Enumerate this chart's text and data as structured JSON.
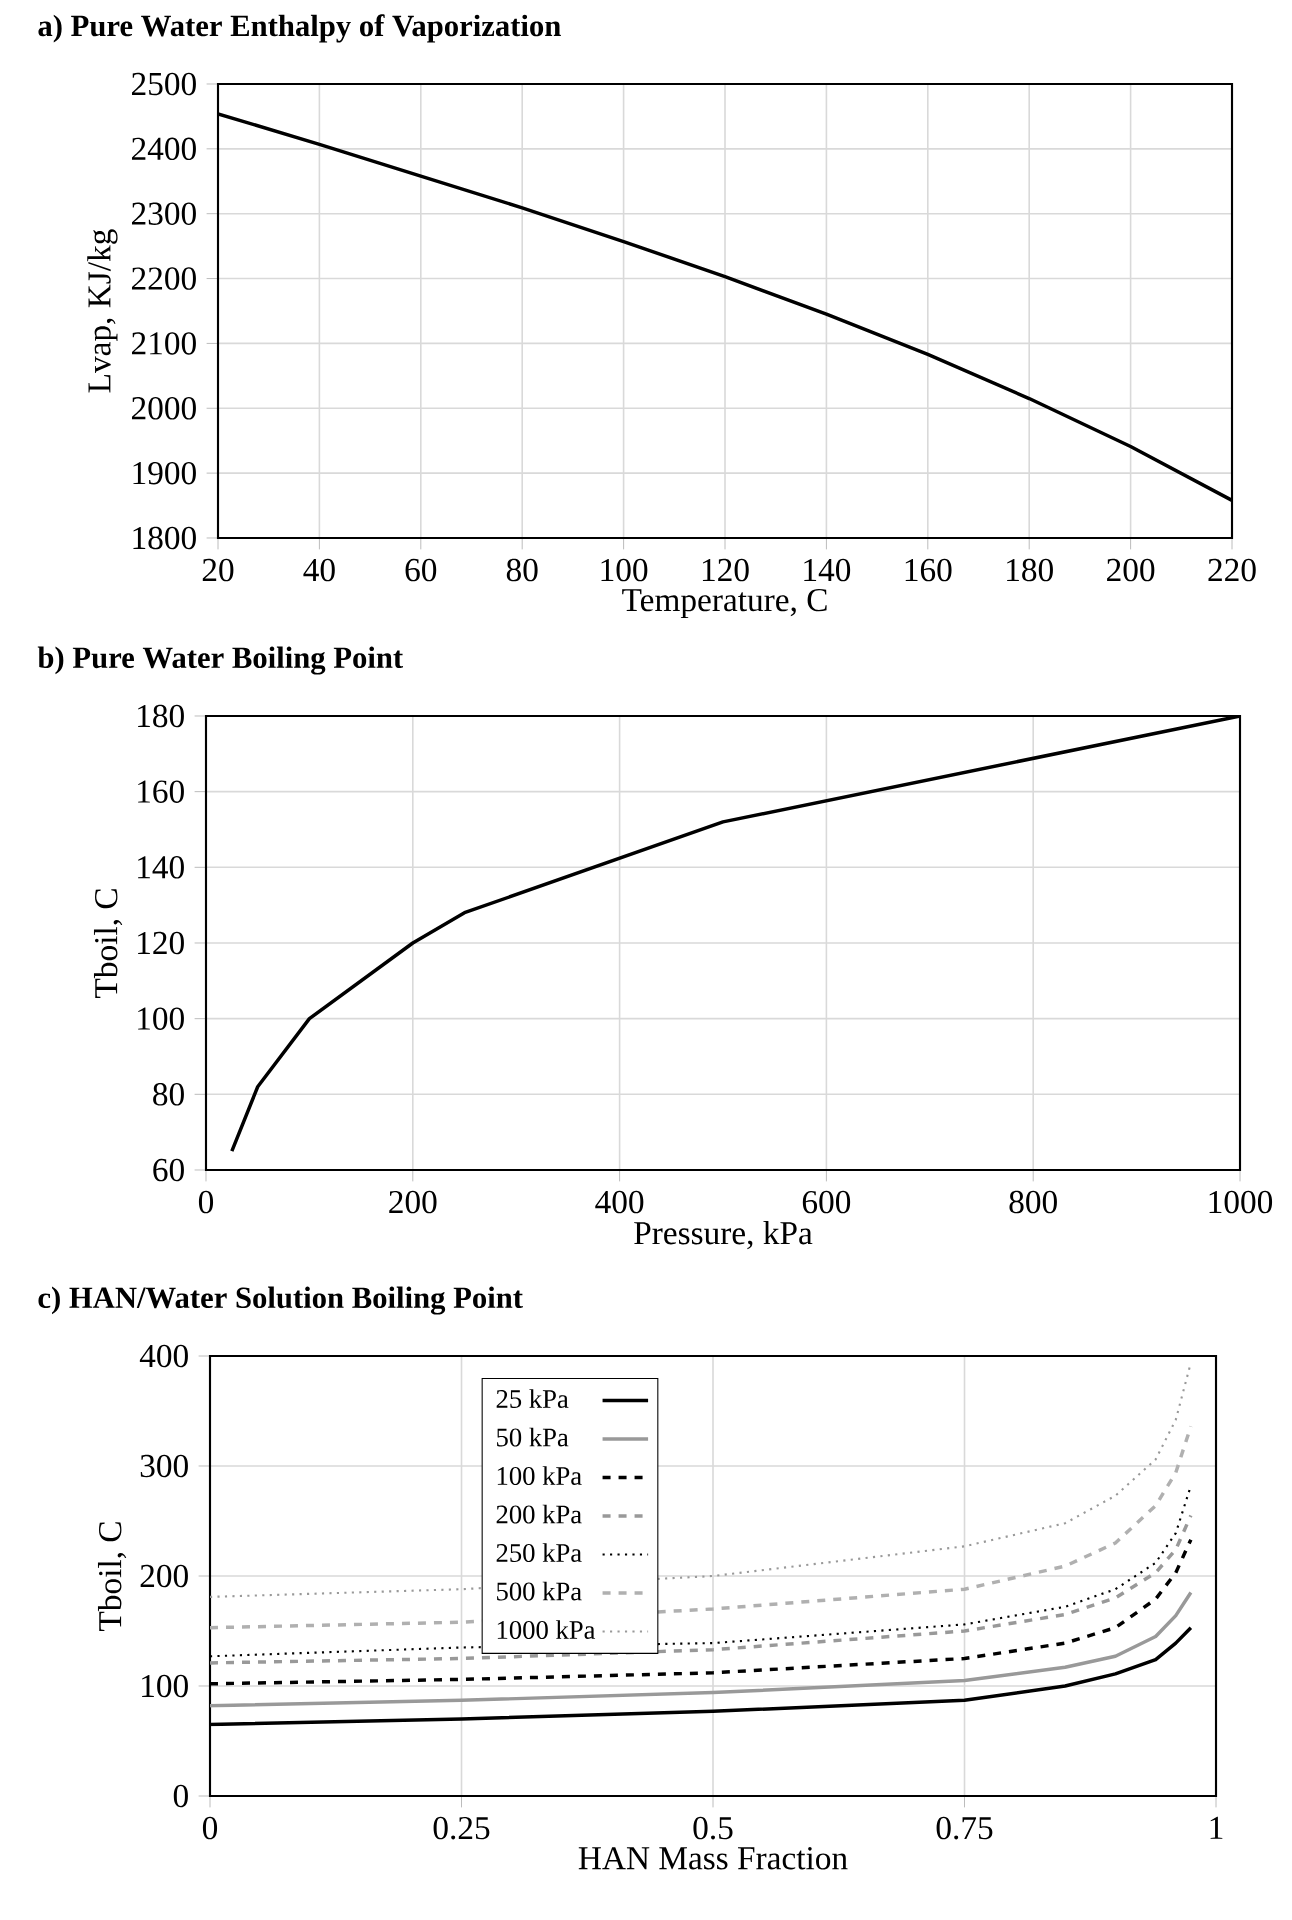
{
  "chart_data": [
    {
      "type": "line",
      "title": "a) Pure Water Enthalpy of Vaporization",
      "xlabel": "Temperature, C",
      "ylabel": "Lvap, KJ/kg",
      "xlim": [
        20,
        220
      ],
      "ylim": [
        1800,
        2500
      ],
      "xticks": [
        20,
        40,
        60,
        80,
        100,
        120,
        140,
        160,
        180,
        200,
        220
      ],
      "yticks": [
        1800,
        1900,
        2000,
        2100,
        2200,
        2300,
        2400,
        2500
      ],
      "grid": true,
      "color": "#000000",
      "x": [
        20,
        40,
        60,
        80,
        100,
        120,
        140,
        160,
        180,
        200,
        220
      ],
      "values": [
        2454,
        2407,
        2358,
        2309,
        2257,
        2203,
        2145,
        2083,
        2015,
        1941,
        1858
      ]
    },
    {
      "type": "line",
      "title": "b) Pure Water Boiling Point",
      "xlabel": "Pressure, kPa",
      "ylabel": "Tboil, C",
      "xlim": [
        0,
        1000
      ],
      "ylim": [
        60,
        180
      ],
      "xticks": [
        0,
        200,
        400,
        600,
        800,
        1000
      ],
      "yticks": [
        60,
        80,
        100,
        120,
        140,
        160,
        180
      ],
      "grid": true,
      "color": "#000000",
      "x": [
        25,
        50,
        100,
        200,
        250,
        500,
        1000
      ],
      "values": [
        65,
        82,
        100,
        120,
        128,
        152,
        180
      ]
    },
    {
      "type": "line",
      "title": "c) HAN/Water Solution Boiling Point",
      "xlabel": "HAN Mass Fraction",
      "ylabel": "Tboil, C",
      "xlim": [
        0,
        1
      ],
      "ylim": [
        0,
        400
      ],
      "xticks": [
        0,
        0.25,
        0.5,
        0.75,
        1
      ],
      "yticks": [
        0,
        100,
        200,
        300,
        400
      ],
      "grid": true,
      "legend": "top left",
      "x": [
        0,
        0.25,
        0.5,
        0.75,
        0.85,
        0.9,
        0.94,
        0.96,
        0.975
      ],
      "series": [
        {
          "name": "25 kPa",
          "color": "#000000",
          "line_style": "solid",
          "values": [
            65,
            70,
            77,
            87,
            100,
            111,
            124,
            139,
            153
          ]
        },
        {
          "name": "50 kPa",
          "color": "#999999",
          "line_style": "solid",
          "values": [
            82,
            87,
            94,
            105,
            117,
            127,
            145,
            164,
            185
          ]
        },
        {
          "name": "100 kPa",
          "color": "#000000",
          "line_style": "dashed",
          "values": [
            102,
            106,
            112,
            125,
            139,
            153,
            179,
            203,
            233
          ]
        },
        {
          "name": "200 kPa",
          "color": "#999999",
          "line_style": "dashed",
          "values": [
            121,
            125,
            133,
            150,
            165,
            180,
            203,
            224,
            255
          ]
        },
        {
          "name": "250 kPa",
          "color": "#000000",
          "line_style": "dotted",
          "values": [
            127,
            135,
            139,
            156,
            172,
            188,
            212,
            239,
            282
          ]
        },
        {
          "name": "500 kPa",
          "color": "#b0b0b0",
          "line_style": "dashed",
          "values": [
            153,
            158,
            170,
            188,
            209,
            230,
            264,
            294,
            336
          ]
        },
        {
          "name": "1000 kPa",
          "color": "#999999",
          "line_style": "dotted",
          "values": [
            181,
            188,
            200,
            227,
            248,
            273,
            306,
            342,
            394
          ]
        }
      ]
    }
  ]
}
